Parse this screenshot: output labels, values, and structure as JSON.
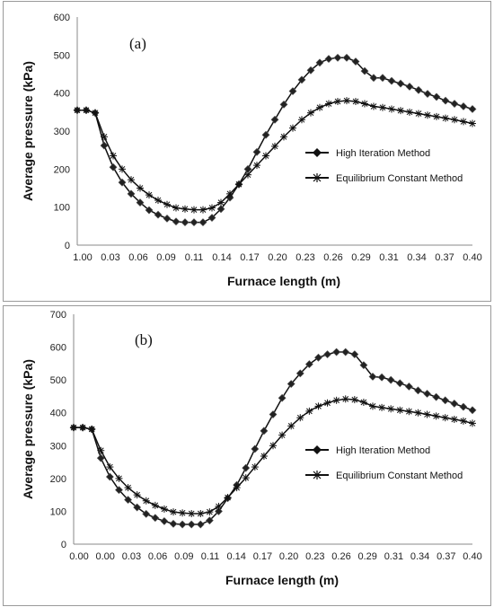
{
  "chart_data": [
    {
      "type": "line",
      "panel_label": "(a)",
      "xlabel": "Furnace length (m)",
      "ylabel": "Average pressure (kPa)",
      "ylim": [
        0,
        600
      ],
      "yticks": [
        0,
        100,
        200,
        300,
        400,
        500,
        600
      ],
      "tick_labels": [
        "1.00",
        "0.03",
        "0.06",
        "0.09",
        "0.11",
        "0.14",
        "0.17",
        "0.20",
        "0.23",
        "0.26",
        "0.29",
        "0.31",
        "0.34",
        "0.37",
        "0.40"
      ],
      "legend_position": "right",
      "grid": false,
      "series": [
        {
          "name": "High Iteration Method",
          "marker": "diamond",
          "values": [
            355,
            355,
            348,
            262,
            205,
            165,
            135,
            112,
            92,
            80,
            70,
            62,
            60,
            60,
            60,
            72,
            95,
            125,
            160,
            200,
            245,
            290,
            330,
            370,
            405,
            435,
            460,
            480,
            490,
            493,
            493,
            483,
            458,
            440,
            440,
            432,
            425,
            417,
            408,
            398,
            390,
            380,
            372,
            365,
            358
          ]
        },
        {
          "name": "Equilibrium Constant Method",
          "marker": "star",
          "values": [
            355,
            355,
            348,
            285,
            235,
            200,
            172,
            150,
            132,
            118,
            107,
            98,
            95,
            93,
            93,
            98,
            112,
            135,
            160,
            185,
            210,
            235,
            260,
            285,
            308,
            330,
            348,
            362,
            372,
            378,
            380,
            378,
            372,
            365,
            362,
            358,
            354,
            350,
            346,
            342,
            338,
            334,
            330,
            325,
            320
          ]
        }
      ]
    },
    {
      "type": "line",
      "panel_label": "(b)",
      "xlabel": "Furnace length (m)",
      "ylabel": "Average pressure (kPa)",
      "ylim": [
        0,
        700
      ],
      "yticks": [
        0,
        100,
        200,
        300,
        400,
        500,
        600,
        700
      ],
      "tick_labels": [
        "0.00",
        "0.00",
        "0.03",
        "0.06",
        "0.09",
        "0.11",
        "0.14",
        "0.17",
        "0.20",
        "0.23",
        "0.26",
        "0.29",
        "0.31",
        "0.34",
        "0.37",
        "0.40"
      ],
      "legend_position": "right",
      "grid": false,
      "series": [
        {
          "name": "High Iteration Method",
          "marker": "diamond",
          "values": [
            355,
            355,
            350,
            262,
            205,
            165,
            135,
            112,
            92,
            80,
            70,
            62,
            60,
            60,
            60,
            72,
            100,
            140,
            180,
            232,
            290,
            345,
            395,
            445,
            488,
            520,
            548,
            568,
            578,
            585,
            585,
            578,
            545,
            510,
            508,
            500,
            490,
            480,
            468,
            458,
            448,
            438,
            428,
            418,
            408
          ]
        },
        {
          "name": "Equilibrium Constant Method",
          "marker": "star",
          "values": [
            355,
            355,
            350,
            285,
            235,
            200,
            172,
            150,
            132,
            118,
            107,
            98,
            95,
            93,
            93,
            98,
            115,
            142,
            172,
            202,
            235,
            268,
            300,
            332,
            360,
            385,
            405,
            420,
            430,
            438,
            442,
            440,
            432,
            420,
            416,
            412,
            408,
            404,
            400,
            395,
            390,
            385,
            380,
            375,
            368
          ]
        }
      ]
    }
  ]
}
